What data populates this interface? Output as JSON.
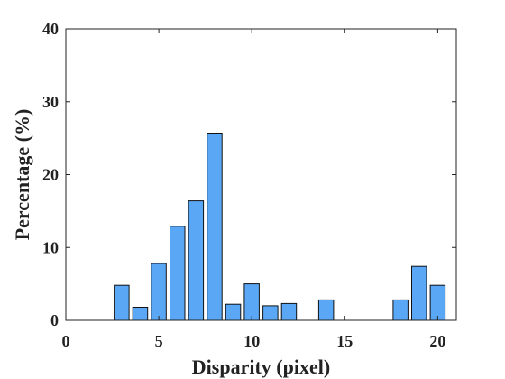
{
  "chart_data": {
    "type": "bar",
    "title": "",
    "xlabel": "Disparity (pixel)",
    "ylabel": "Percentage (%)",
    "xlim": [
      0,
      21
    ],
    "ylim": [
      0,
      40
    ],
    "xticks": [
      0,
      5,
      10,
      15,
      20
    ],
    "yticks": [
      0,
      10,
      20,
      30,
      40
    ],
    "bar_width": 0.8,
    "bar_color": "#5aa8f5",
    "grid": false,
    "x": [
      3,
      4,
      5,
      6,
      7,
      8,
      9,
      10,
      11,
      12,
      14,
      18,
      19,
      20
    ],
    "values": [
      4.8,
      1.8,
      7.8,
      12.9,
      16.4,
      25.7,
      2.2,
      5.0,
      2.0,
      2.3,
      2.8,
      2.8,
      7.4,
      4.8
    ]
  }
}
